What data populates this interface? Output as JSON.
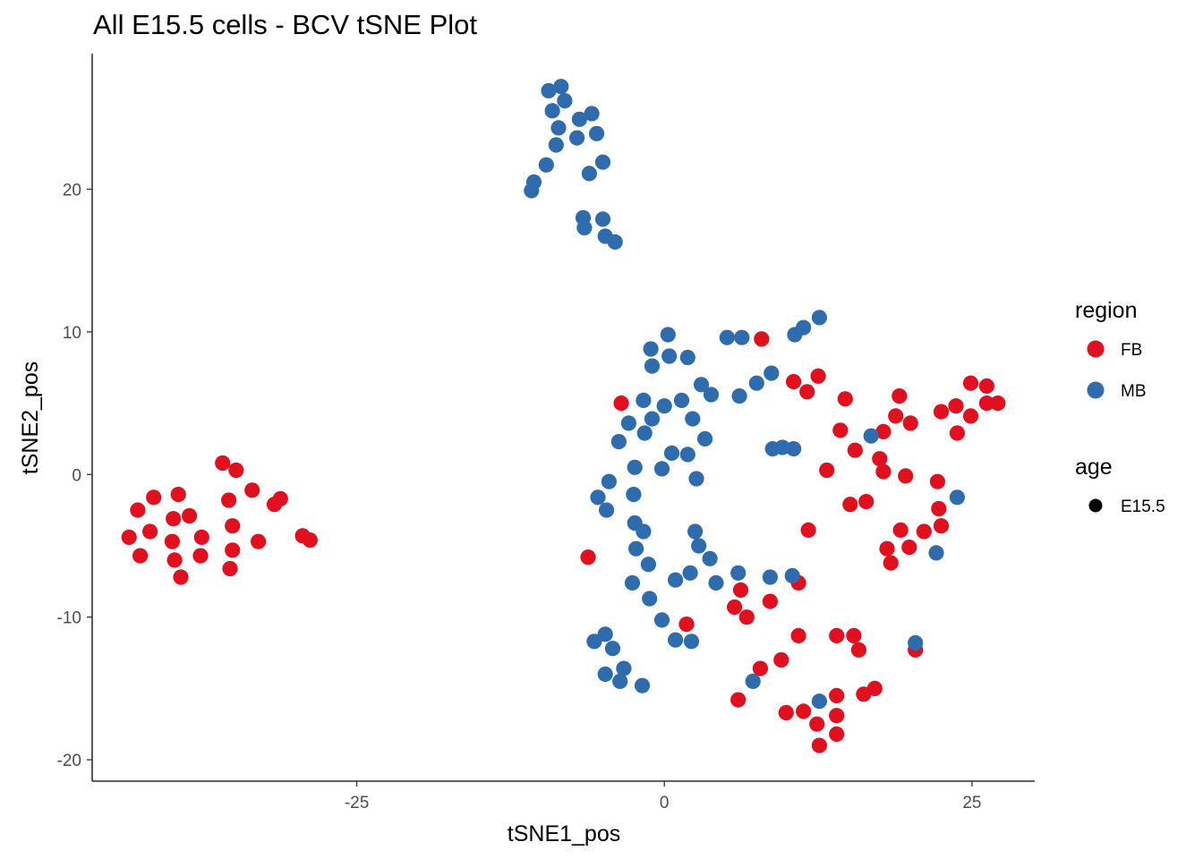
{
  "chart_data": {
    "type": "scatter",
    "title": "All E15.5 cells - BCV tSNE Plot",
    "xlabel": "tSNE1_pos",
    "ylabel": "tSNE2_pos",
    "xlim": [
      -46.5,
      30.1
    ],
    "ylim": [
      -21.5,
      29.5
    ],
    "xticks": [
      -25,
      0,
      25
    ],
    "xtick_labels": [
      "-25",
      "0",
      "25"
    ],
    "yticks": [
      -20,
      -10,
      0,
      10,
      20
    ],
    "ytick_labels": [
      "-20",
      "-10",
      "0",
      "10",
      "20"
    ],
    "grid": false,
    "legend": {
      "position": "right",
      "groups": [
        {
          "title": "region",
          "entries": [
            {
              "label": "FB",
              "color": "#e0101f"
            },
            {
              "label": "MB",
              "color": "#2f6cad"
            }
          ]
        },
        {
          "title": "age",
          "entries": [
            {
              "label": "E15.5",
              "color": "#000000"
            }
          ]
        }
      ]
    },
    "series": [
      {
        "name": "FB",
        "color": "#e0101f",
        "points": [
          [
            -35.9,
            0.8
          ],
          [
            -34.8,
            0.3
          ],
          [
            -41.5,
            -1.6
          ],
          [
            -39.5,
            -1.4
          ],
          [
            -35.4,
            -1.8
          ],
          [
            -33.5,
            -1.1
          ],
          [
            -42.8,
            -2.5
          ],
          [
            -39.9,
            -3.1
          ],
          [
            -38.6,
            -2.9
          ],
          [
            -41.8,
            -4.0
          ],
          [
            -43.5,
            -4.4
          ],
          [
            -40.0,
            -4.7
          ],
          [
            -37.6,
            -4.4
          ],
          [
            -35.1,
            -3.6
          ],
          [
            -33.0,
            -4.7
          ],
          [
            -42.6,
            -5.7
          ],
          [
            -39.8,
            -6.0
          ],
          [
            -37.7,
            -5.7
          ],
          [
            -35.1,
            -5.3
          ],
          [
            -35.3,
            -6.6
          ],
          [
            -39.3,
            -7.2
          ],
          [
            -31.7,
            -2.1
          ],
          [
            -31.2,
            -1.7
          ],
          [
            -28.8,
            -4.6
          ],
          [
            -29.4,
            -4.3
          ],
          [
            -6.2,
            -5.8
          ],
          [
            -3.5,
            5.0
          ],
          [
            7.9,
            9.5
          ],
          [
            10.5,
            6.5
          ],
          [
            12.5,
            6.9
          ],
          [
            11.6,
            5.8
          ],
          [
            14.7,
            5.3
          ],
          [
            19.1,
            5.5
          ],
          [
            14.3,
            3.1
          ],
          [
            15.5,
            1.7
          ],
          [
            18.8,
            4.1
          ],
          [
            20.0,
            3.6
          ],
          [
            17.8,
            3.0
          ],
          [
            17.5,
            1.1
          ],
          [
            17.8,
            0.2
          ],
          [
            13.2,
            0.3
          ],
          [
            19.6,
            -0.1
          ],
          [
            22.2,
            -0.5
          ],
          [
            15.1,
            -2.1
          ],
          [
            16.4,
            -1.9
          ],
          [
            22.3,
            -2.4
          ],
          [
            22.5,
            -3.6
          ],
          [
            21.1,
            -4.0
          ],
          [
            19.2,
            -3.9
          ],
          [
            18.1,
            -5.2
          ],
          [
            18.4,
            -6.2
          ],
          [
            19.9,
            -5.1
          ],
          [
            11.7,
            -3.9
          ],
          [
            10.9,
            -7.6
          ],
          [
            6.2,
            -8.1
          ],
          [
            5.7,
            -9.3
          ],
          [
            6.7,
            -10.0
          ],
          [
            8.6,
            -8.9
          ],
          [
            1.8,
            -10.5
          ],
          [
            10.9,
            -11.3
          ],
          [
            14.0,
            -11.3
          ],
          [
            15.4,
            -11.3
          ],
          [
            15.8,
            -12.3
          ],
          [
            9.5,
            -13.0
          ],
          [
            7.8,
            -13.6
          ],
          [
            20.4,
            -12.3
          ],
          [
            17.1,
            -15.0
          ],
          [
            16.2,
            -15.4
          ],
          [
            14.0,
            -15.5
          ],
          [
            14.0,
            -16.9
          ],
          [
            14.0,
            -18.2
          ],
          [
            12.4,
            -17.5
          ],
          [
            11.3,
            -16.6
          ],
          [
            9.9,
            -16.7
          ],
          [
            12.6,
            -19.0
          ],
          [
            6.0,
            -15.8
          ],
          [
            22.5,
            4.4
          ],
          [
            23.7,
            4.8
          ],
          [
            24.9,
            6.4
          ],
          [
            26.2,
            6.2
          ],
          [
            24.9,
            4.1
          ],
          [
            26.2,
            5.0
          ],
          [
            27.1,
            5.0
          ],
          [
            23.8,
            2.9
          ]
        ]
      },
      {
        "name": "MB",
        "color": "#2f6cad",
        "points": [
          [
            -9.4,
            26.9
          ],
          [
            -8.4,
            27.2
          ],
          [
            -8.1,
            26.2
          ],
          [
            -9.1,
            25.5
          ],
          [
            -8.6,
            24.3
          ],
          [
            -6.9,
            24.9
          ],
          [
            -5.9,
            25.3
          ],
          [
            -7.1,
            23.6
          ],
          [
            -5.5,
            23.9
          ],
          [
            -8.8,
            23.1
          ],
          [
            -9.6,
            21.7
          ],
          [
            -5.0,
            21.9
          ],
          [
            -6.1,
            21.1
          ],
          [
            -10.6,
            20.5
          ],
          [
            -10.8,
            19.9
          ],
          [
            -6.6,
            18.0
          ],
          [
            -5.0,
            17.9
          ],
          [
            -6.5,
            17.3
          ],
          [
            -4.8,
            16.7
          ],
          [
            -4.0,
            16.3
          ],
          [
            0.3,
            9.8
          ],
          [
            -1.1,
            8.8
          ],
          [
            0.4,
            8.3
          ],
          [
            1.9,
            8.2
          ],
          [
            -1.0,
            7.6
          ],
          [
            5.1,
            9.6
          ],
          [
            6.3,
            9.6
          ],
          [
            11.3,
            10.3
          ],
          [
            12.6,
            11.0
          ],
          [
            10.6,
            9.8
          ],
          [
            8.7,
            7.1
          ],
          [
            7.5,
            6.4
          ],
          [
            6.1,
            5.5
          ],
          [
            3.0,
            6.3
          ],
          [
            3.8,
            5.6
          ],
          [
            -1.7,
            5.2
          ],
          [
            1.4,
            5.2
          ],
          [
            0.0,
            4.8
          ],
          [
            -1.0,
            3.9
          ],
          [
            2.3,
            3.9
          ],
          [
            -2.9,
            3.6
          ],
          [
            -1.6,
            2.9
          ],
          [
            3.3,
            2.5
          ],
          [
            -3.7,
            2.3
          ],
          [
            0.6,
            1.5
          ],
          [
            1.9,
            1.4
          ],
          [
            8.8,
            1.8
          ],
          [
            9.6,
            1.9
          ],
          [
            10.5,
            1.8
          ],
          [
            16.8,
            2.7
          ],
          [
            -2.4,
            0.5
          ],
          [
            -0.2,
            0.4
          ],
          [
            2.6,
            -0.3
          ],
          [
            -4.5,
            -0.5
          ],
          [
            -5.4,
            -1.6
          ],
          [
            -2.5,
            -1.4
          ],
          [
            -4.7,
            -2.5
          ],
          [
            -2.4,
            -3.4
          ],
          [
            -1.7,
            -4.0
          ],
          [
            2.5,
            -4.0
          ],
          [
            2.8,
            -5.0
          ],
          [
            -2.3,
            -5.2
          ],
          [
            3.7,
            -5.9
          ],
          [
            -1.3,
            -6.3
          ],
          [
            2.1,
            -6.9
          ],
          [
            0.9,
            -7.4
          ],
          [
            6.0,
            -6.9
          ],
          [
            8.6,
            -7.2
          ],
          [
            10.4,
            -7.1
          ],
          [
            4.2,
            -7.6
          ],
          [
            -2.6,
            -7.6
          ],
          [
            -1.2,
            -8.7
          ],
          [
            -0.2,
            -10.2
          ],
          [
            0.9,
            -11.6
          ],
          [
            2.2,
            -11.7
          ],
          [
            -5.7,
            -11.7
          ],
          [
            -4.8,
            -11.2
          ],
          [
            -4.2,
            -12.2
          ],
          [
            -4.8,
            -14.0
          ],
          [
            -3.3,
            -13.6
          ],
          [
            -3.6,
            -14.5
          ],
          [
            -1.8,
            -14.8
          ],
          [
            7.2,
            -14.5
          ],
          [
            12.6,
            -15.9
          ],
          [
            20.4,
            -11.8
          ],
          [
            22.1,
            -5.5
          ],
          [
            23.8,
            -1.6
          ]
        ]
      }
    ]
  }
}
